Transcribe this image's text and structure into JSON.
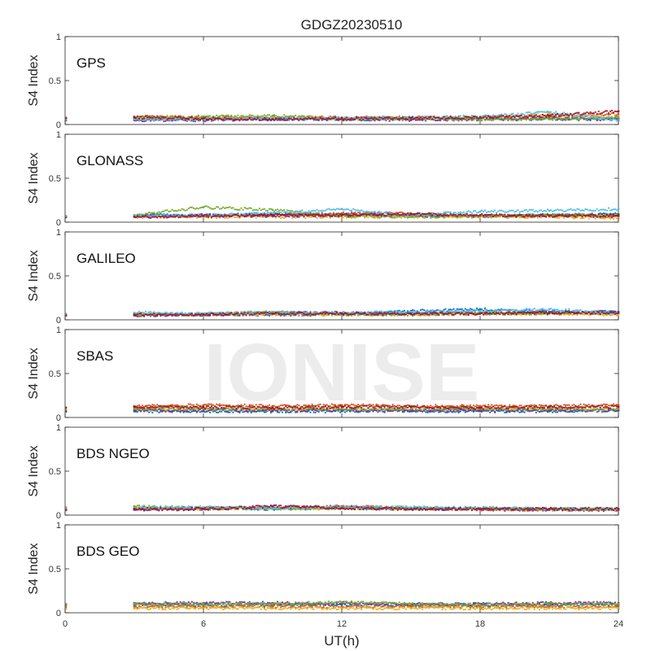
{
  "figure": {
    "title": "GDGZ20230510",
    "watermark": "IONISE"
  },
  "chart_data": {
    "type": "scatter",
    "title": "GDGZ20230510",
    "xlabel": "UT(h)",
    "ylabel": "S4 Index",
    "xlim": [
      0,
      24
    ],
    "ylim": [
      0,
      1
    ],
    "xticks": [
      "0",
      "6",
      "12",
      "18",
      "24"
    ],
    "yticks": [
      "0",
      "0.5",
      "1"
    ],
    "grid": false,
    "data_start_hour": 3,
    "colors": [
      "#0072BD",
      "#D95319",
      "#EDB120",
      "#7E2F8E",
      "#77AC30",
      "#4DBEEE",
      "#A2142F"
    ],
    "panels": [
      {
        "label": "GPS",
        "traces": [
          {
            "color": "#0072BD",
            "x": [
              3,
              6,
              9,
              12,
              15,
              18,
              21,
              24
            ],
            "y": [
              0.07,
              0.07,
              0.06,
              0.06,
              0.06,
              0.07,
              0.07,
              0.07
            ]
          },
          {
            "color": "#D95319",
            "x": [
              3,
              6,
              9,
              12,
              15,
              18,
              21,
              24
            ],
            "y": [
              0.09,
              0.08,
              0.08,
              0.08,
              0.08,
              0.08,
              0.09,
              0.12
            ]
          },
          {
            "color": "#EDB120",
            "x": [
              3,
              6,
              9,
              12,
              15,
              18,
              21,
              24
            ],
            "y": [
              0.06,
              0.07,
              0.08,
              0.06,
              0.07,
              0.08,
              0.12,
              0.08
            ]
          },
          {
            "color": "#7E2F8E",
            "x": [
              3,
              6,
              9,
              12,
              15,
              18,
              21,
              24
            ],
            "y": [
              0.05,
              0.05,
              0.06,
              0.06,
              0.05,
              0.06,
              0.06,
              0.06
            ]
          },
          {
            "color": "#77AC30",
            "x": [
              3,
              6,
              9,
              12,
              15,
              18,
              21,
              24
            ],
            "y": [
              0.08,
              0.09,
              0.1,
              0.07,
              0.07,
              0.06,
              0.06,
              0.08
            ]
          },
          {
            "color": "#4DBEEE",
            "x": [
              3,
              6,
              9,
              12,
              15,
              18,
              21,
              24
            ],
            "y": [
              0.06,
              0.06,
              0.07,
              0.07,
              0.08,
              0.09,
              0.14,
              0.05
            ]
          },
          {
            "color": "#A2142F",
            "x": [
              3,
              6,
              9,
              12,
              15,
              18,
              21,
              24
            ],
            "y": [
              0.08,
              0.07,
              0.06,
              0.07,
              0.07,
              0.08,
              0.1,
              0.15
            ]
          }
        ]
      },
      {
        "label": "GLONASS",
        "traces": [
          {
            "color": "#0072BD",
            "x": [
              3,
              6,
              9,
              12,
              15,
              18,
              21,
              24
            ],
            "y": [
              0.08,
              0.08,
              0.09,
              0.09,
              0.07,
              0.07,
              0.08,
              0.09
            ]
          },
          {
            "color": "#D95319",
            "x": [
              3,
              6,
              9,
              12,
              15,
              18,
              21,
              24
            ],
            "y": [
              0.07,
              0.07,
              0.08,
              0.1,
              0.1,
              0.07,
              0.07,
              0.06
            ]
          },
          {
            "color": "#EDB120",
            "x": [
              3,
              6,
              9,
              12,
              15,
              18,
              21,
              24
            ],
            "y": [
              0.06,
              0.06,
              0.06,
              0.06,
              0.06,
              0.06,
              0.06,
              0.05
            ]
          },
          {
            "color": "#7E2F8E",
            "x": [
              3,
              6,
              9,
              12,
              15,
              18,
              21,
              24
            ],
            "y": [
              0.07,
              0.08,
              0.07,
              0.08,
              0.08,
              0.07,
              0.08,
              0.07
            ]
          },
          {
            "color": "#77AC30",
            "x": [
              3,
              6,
              9,
              12,
              15,
              18,
              21,
              24
            ],
            "y": [
              0.08,
              0.17,
              0.14,
              0.07,
              0.06,
              0.07,
              0.08,
              0.08
            ]
          },
          {
            "color": "#4DBEEE",
            "x": [
              3,
              6,
              9,
              12,
              15,
              18,
              21,
              24
            ],
            "y": [
              0.07,
              0.08,
              0.1,
              0.15,
              0.08,
              0.12,
              0.13,
              0.15
            ]
          },
          {
            "color": "#A2142F",
            "x": [
              3,
              6,
              9,
              12,
              15,
              18,
              21,
              24
            ],
            "y": [
              0.06,
              0.07,
              0.08,
              0.08,
              0.09,
              0.08,
              0.07,
              0.08
            ]
          }
        ]
      },
      {
        "label": "GALILEO",
        "traces": [
          {
            "color": "#0072BD",
            "x": [
              3,
              6,
              9,
              12,
              15,
              18,
              21,
              24
            ],
            "y": [
              0.05,
              0.06,
              0.06,
              0.06,
              0.1,
              0.12,
              0.09,
              0.09
            ]
          },
          {
            "color": "#D95319",
            "x": [
              3,
              6,
              9,
              12,
              15,
              18,
              21,
              24
            ],
            "y": [
              0.06,
              0.06,
              0.08,
              0.07,
              0.07,
              0.08,
              0.08,
              0.07
            ]
          },
          {
            "color": "#EDB120",
            "x": [
              3,
              6,
              9,
              12,
              15,
              18,
              21,
              24
            ],
            "y": [
              0.07,
              0.06,
              0.06,
              0.06,
              0.06,
              0.07,
              0.07,
              0.06
            ]
          },
          {
            "color": "#7E2F8E",
            "x": [
              3,
              6,
              9,
              12,
              15,
              18,
              21,
              24
            ],
            "y": [
              0.05,
              0.06,
              0.08,
              0.08,
              0.07,
              0.07,
              0.08,
              0.09
            ]
          },
          {
            "color": "#77AC30",
            "x": [
              3,
              6,
              9,
              12,
              15,
              18,
              21,
              24
            ],
            "y": [
              0.06,
              0.07,
              0.09,
              0.06,
              0.06,
              0.07,
              0.07,
              0.08
            ]
          },
          {
            "color": "#4DBEEE",
            "x": [
              3,
              6,
              9,
              12,
              15,
              18,
              21,
              24
            ],
            "y": [
              0.08,
              0.07,
              0.08,
              0.08,
              0.09,
              0.1,
              0.12,
              0.08
            ]
          },
          {
            "color": "#A2142F",
            "x": [
              3,
              6,
              9,
              12,
              15,
              18,
              21,
              24
            ],
            "y": [
              0.06,
              0.06,
              0.07,
              0.07,
              0.07,
              0.07,
              0.08,
              0.08
            ]
          }
        ]
      },
      {
        "label": "SBAS",
        "traces": [
          {
            "color": "#0072BD",
            "x": [
              3,
              6,
              9,
              12,
              15,
              18,
              21,
              24
            ],
            "y": [
              0.07,
              0.07,
              0.07,
              0.07,
              0.07,
              0.07,
              0.07,
              0.08
            ]
          },
          {
            "color": "#D95319",
            "x": [
              3,
              6,
              9,
              12,
              15,
              18,
              21,
              24
            ],
            "y": [
              0.13,
              0.14,
              0.13,
              0.14,
              0.13,
              0.13,
              0.13,
              0.14
            ]
          },
          {
            "color": "#EDB120",
            "x": [
              3,
              6,
              9,
              12,
              15,
              18,
              21,
              24
            ],
            "y": [
              0.09,
              0.1,
              0.09,
              0.1,
              0.09,
              0.1,
              0.09,
              0.1
            ]
          },
          {
            "color": "#7E2F8E",
            "x": [
              3,
              6,
              9,
              12,
              15,
              18,
              21,
              24
            ],
            "y": [
              0.08,
              0.08,
              0.08,
              0.08,
              0.08,
              0.08,
              0.08,
              0.08
            ]
          },
          {
            "color": "#77AC30",
            "x": [
              3,
              6,
              9,
              12,
              15,
              18,
              21,
              24
            ],
            "y": [
              0.1,
              0.1,
              0.1,
              0.1,
              0.1,
              0.1,
              0.1,
              0.1
            ]
          },
          {
            "color": "#A2142F",
            "x": [
              3,
              6,
              9,
              12,
              15,
              18,
              21,
              24
            ],
            "y": [
              0.12,
              0.12,
              0.11,
              0.12,
              0.12,
              0.11,
              0.12,
              0.12
            ]
          }
        ]
      },
      {
        "label": "BDS NGEO",
        "traces": [
          {
            "color": "#0072BD",
            "x": [
              3,
              6,
              9,
              12,
              15,
              18,
              21,
              24
            ],
            "y": [
              0.08,
              0.08,
              0.07,
              0.08,
              0.07,
              0.07,
              0.07,
              0.07
            ]
          },
          {
            "color": "#D95319",
            "x": [
              3,
              6,
              9,
              12,
              15,
              18,
              21,
              24
            ],
            "y": [
              0.07,
              0.08,
              0.08,
              0.1,
              0.08,
              0.06,
              0.06,
              0.06
            ]
          },
          {
            "color": "#EDB120",
            "x": [
              3,
              6,
              9,
              12,
              15,
              18,
              21,
              24
            ],
            "y": [
              0.09,
              0.07,
              0.08,
              0.08,
              0.07,
              0.07,
              0.06,
              0.07
            ]
          },
          {
            "color": "#7E2F8E",
            "x": [
              3,
              6,
              9,
              12,
              15,
              18,
              21,
              24
            ],
            "y": [
              0.06,
              0.07,
              0.09,
              0.09,
              0.07,
              0.07,
              0.06,
              0.06
            ]
          },
          {
            "color": "#77AC30",
            "x": [
              3,
              6,
              9,
              12,
              15,
              18,
              21,
              24
            ],
            "y": [
              0.1,
              0.08,
              0.07,
              0.08,
              0.08,
              0.08,
              0.07,
              0.07
            ]
          },
          {
            "color": "#4DBEEE",
            "x": [
              3,
              6,
              9,
              12,
              15,
              18,
              21,
              24
            ],
            "y": [
              0.08,
              0.09,
              0.08,
              0.09,
              0.09,
              0.08,
              0.07,
              0.07
            ]
          },
          {
            "color": "#A2142F",
            "x": [
              3,
              6,
              9,
              12,
              15,
              18,
              21,
              24
            ],
            "y": [
              0.07,
              0.07,
              0.1,
              0.08,
              0.07,
              0.07,
              0.07,
              0.07
            ]
          }
        ]
      },
      {
        "label": "BDS GEO",
        "traces": [
          {
            "color": "#0072BD",
            "x": [
              3,
              6,
              9,
              12,
              15,
              18,
              21,
              24
            ],
            "y": [
              0.09,
              0.09,
              0.09,
              0.09,
              0.09,
              0.09,
              0.09,
              0.09
            ]
          },
          {
            "color": "#D95319",
            "x": [
              3,
              6,
              9,
              12,
              15,
              18,
              21,
              24
            ],
            "y": [
              0.07,
              0.07,
              0.07,
              0.07,
              0.07,
              0.07,
              0.07,
              0.07
            ]
          },
          {
            "color": "#EDB120",
            "x": [
              3,
              6,
              9,
              12,
              15,
              18,
              21,
              24
            ],
            "y": [
              0.05,
              0.05,
              0.05,
              0.05,
              0.05,
              0.05,
              0.05,
              0.05
            ]
          },
          {
            "color": "#7E2F8E",
            "x": [
              3,
              6,
              9,
              12,
              15,
              18,
              21,
              24
            ],
            "y": [
              0.11,
              0.11,
              0.11,
              0.11,
              0.1,
              0.1,
              0.11,
              0.11
            ]
          },
          {
            "color": "#77AC30",
            "x": [
              3,
              6,
              9,
              12,
              15,
              18,
              21,
              24
            ],
            "y": [
              0.1,
              0.1,
              0.1,
              0.12,
              0.1,
              0.09,
              0.1,
              0.1
            ]
          }
        ]
      }
    ]
  }
}
